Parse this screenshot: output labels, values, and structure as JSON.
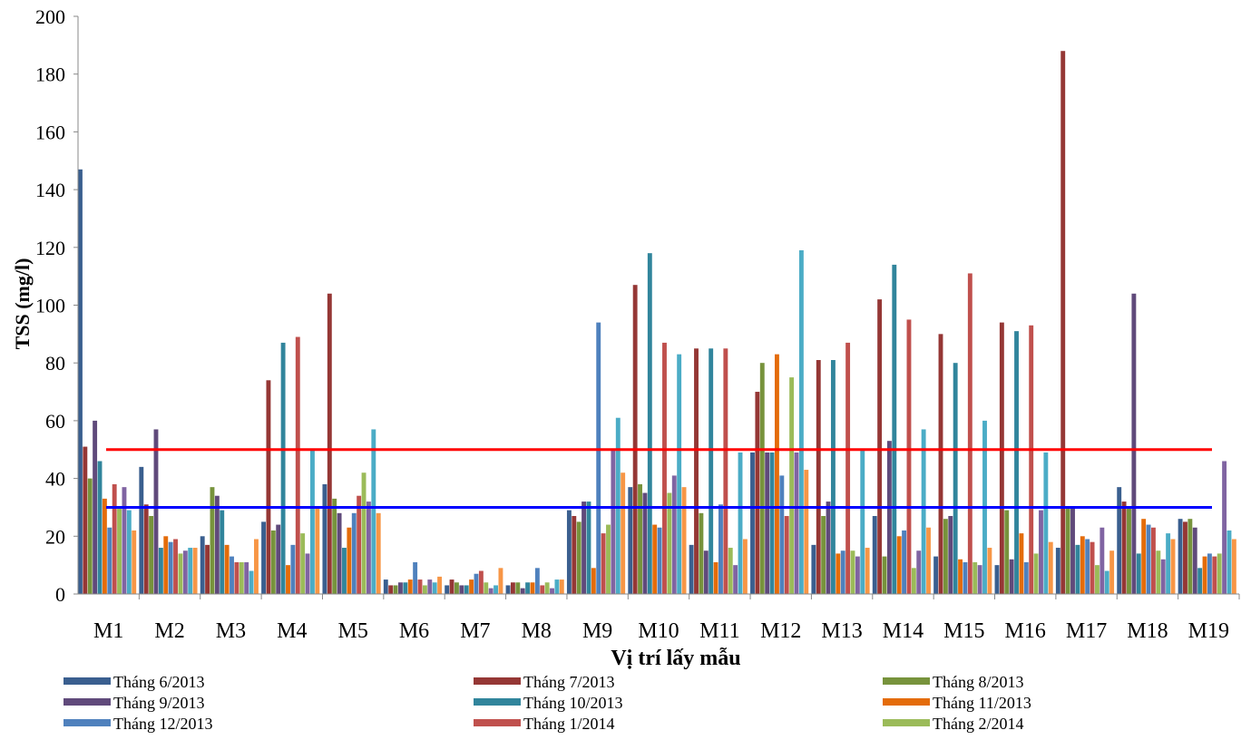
{
  "chart_data": {
    "type": "bar",
    "title": "",
    "xlabel": "Vị trí lấy mẫu",
    "ylabel": "TSS (mg/l)",
    "ylim": [
      0,
      200
    ],
    "yticks": [
      0,
      20,
      40,
      60,
      80,
      100,
      120,
      140,
      160,
      180,
      200
    ],
    "grid": false,
    "legend_position": "bottom",
    "categories": [
      "M1",
      "M2",
      "M3",
      "M4",
      "M5",
      "M6",
      "M7",
      "M8",
      "M9",
      "M10",
      "M11",
      "M12",
      "M13",
      "M14",
      "M15",
      "M16",
      "M17",
      "M18",
      "M19"
    ],
    "series": [
      {
        "name": "Tháng 6/2013",
        "color": "#3A5F8F",
        "values": [
          147,
          44,
          20,
          25,
          38,
          5,
          3,
          3,
          29,
          37,
          17,
          49,
          17,
          27,
          13,
          10,
          16,
          37,
          26
        ]
      },
      {
        "name": "Tháng 7/2013",
        "color": "#953735",
        "values": [
          51,
          31,
          17,
          74,
          104,
          3,
          5,
          4,
          27,
          107,
          85,
          70,
          81,
          102,
          90,
          94,
          188,
          32,
          25
        ]
      },
      {
        "name": "Tháng 8/2013",
        "color": "#77933C",
        "values": [
          40,
          27,
          37,
          22,
          33,
          3,
          4,
          4,
          25,
          38,
          28,
          80,
          27,
          13,
          26,
          29,
          30,
          30,
          26
        ]
      },
      {
        "name": "Tháng 9/2013",
        "color": "#604A7B",
        "values": [
          60,
          57,
          34,
          24,
          28,
          4,
          3,
          2,
          32,
          35,
          15,
          49,
          32,
          53,
          27,
          12,
          30,
          104,
          23
        ]
      },
      {
        "name": "Tháng 10/2013",
        "color": "#31859C",
        "values": [
          46,
          16,
          29,
          87,
          16,
          4,
          3,
          4,
          32,
          118,
          85,
          49,
          81,
          114,
          80,
          91,
          17,
          14,
          9
        ]
      },
      {
        "name": "Tháng 11/2013",
        "color": "#E46C0A",
        "values": [
          33,
          20,
          17,
          10,
          23,
          5,
          5,
          4,
          9,
          24,
          11,
          83,
          14,
          20,
          12,
          21,
          20,
          26,
          13
        ]
      },
      {
        "name": "Tháng 12/2013",
        "color": "#4F81BD",
        "values": [
          23,
          18,
          13,
          17,
          28,
          11,
          7,
          9,
          94,
          23,
          31,
          41,
          15,
          22,
          11,
          11,
          19,
          24,
          14
        ]
      },
      {
        "name": "Tháng 1/2014",
        "color": "#C0504D",
        "values": [
          38,
          19,
          11,
          89,
          34,
          5,
          8,
          3,
          21,
          87,
          85,
          27,
          87,
          95,
          111,
          93,
          18,
          23,
          13
        ]
      },
      {
        "name": "Tháng 2/2014",
        "color": "#9BBB59",
        "values": [
          30,
          14,
          11,
          21,
          42,
          3,
          4,
          4,
          24,
          35,
          16,
          75,
          15,
          9,
          11,
          14,
          10,
          15,
          14
        ]
      },
      {
        "name": "",
        "color": "#8064A2",
        "values": [
          37,
          15,
          11,
          14,
          32,
          5,
          2,
          2,
          50,
          41,
          10,
          49,
          13,
          15,
          10,
          29,
          23,
          12,
          46
        ]
      },
      {
        "name": "",
        "color": "#4BACC6",
        "values": [
          29,
          16,
          8,
          50,
          57,
          4,
          3,
          5,
          61,
          83,
          49,
          119,
          50,
          57,
          60,
          49,
          8,
          21,
          22
        ]
      },
      {
        "name": "",
        "color": "#F79646",
        "values": [
          22,
          16,
          19,
          30,
          28,
          6,
          9,
          5,
          42,
          37,
          19,
          43,
          16,
          23,
          16,
          18,
          15,
          19,
          19
        ]
      }
    ],
    "reference_lines": [
      {
        "value": 50,
        "color": "#FF0000"
      },
      {
        "value": 30,
        "color": "#0000FF"
      }
    ]
  }
}
